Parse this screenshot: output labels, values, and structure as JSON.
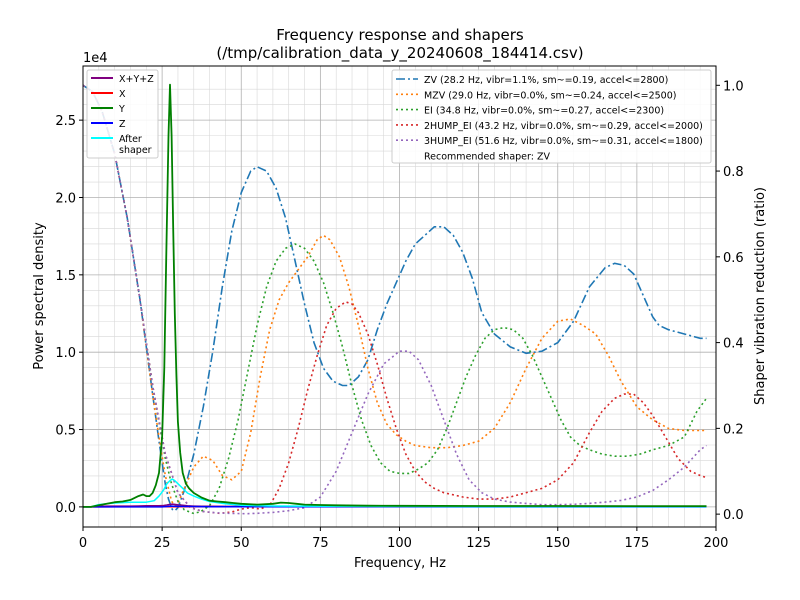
{
  "chart_data": {
    "type": "line",
    "title": [
      "Frequency response and shapers",
      "(/tmp/calibration_data_y_20240608_184414.csv)"
    ],
    "xlabel": "Frequency, Hz",
    "ylabel": "Power spectral density",
    "y2label": "Shaper vibration reduction (ratio)",
    "xlim": [
      0,
      200
    ],
    "ylim": [
      -0.13,
      2.85
    ],
    "y2lim": [
      -0.03,
      1.045
    ],
    "y_multiplier_label": "1e4",
    "x_ticks": [
      0,
      25,
      50,
      75,
      100,
      125,
      150,
      175,
      200
    ],
    "y_ticks": [
      0.0,
      0.5,
      1.0,
      1.5,
      2.0,
      2.5
    ],
    "y_tick_labels": [
      "0.0",
      "0.5",
      "1.0",
      "1.5",
      "2.0",
      "2.5"
    ],
    "y2_ticks": [
      0.0,
      0.2,
      0.4,
      0.6,
      0.8,
      1.0
    ],
    "y2_tick_labels": [
      "0.0",
      "0.2",
      "0.4",
      "0.6",
      "0.8",
      "1.0"
    ],
    "grid": true,
    "legend_left": [
      {
        "label": "X+Y+Z",
        "color": "#800080"
      },
      {
        "label": "X",
        "color": "#ff0000"
      },
      {
        "label": "Y",
        "color": "#008000"
      },
      {
        "label": "Z",
        "color": "#0000ff"
      },
      {
        "label": "After\nshaper",
        "color": "#00ffff"
      }
    ],
    "legend_right": [
      {
        "label": "ZV (28.2 Hz, vibr=1.1%, sm~=0.19, accel<=2800)",
        "color": "#1f77b4",
        "dash": "dashdot"
      },
      {
        "label": "MZV (29.0 Hz, vibr=0.0%, sm~=0.24, accel<=2500)",
        "color": "#ff7f0e",
        "dash": "dotted"
      },
      {
        "label": "EI (34.8 Hz, vibr=0.0%, sm~=0.27, accel<=2300)",
        "color": "#2ca02c",
        "dash": "dotted"
      },
      {
        "label": "2HUMP_EI (43.2 Hz, vibr=0.0%, sm~=0.29, accel<=2000)",
        "color": "#d62728",
        "dash": "dotted"
      },
      {
        "label": "3HUMP_EI (51.6 Hz, vibr=0.0%, sm~=0.31, accel<=1800)",
        "color": "#9467bd",
        "dash": "dotted"
      },
      {
        "label": "Recommended shaper: ZV",
        "color": "",
        "dash": "none"
      }
    ],
    "psd_series": [
      {
        "name": "X+Y+Z",
        "color": "#800080",
        "width": 1.5,
        "x": [
          0,
          2.5,
          5,
          7.5,
          10,
          12.5,
          15,
          17.5,
          20,
          22.5,
          24,
          25.5,
          26.5,
          27.5,
          28.2,
          29,
          30,
          31.5,
          33,
          35,
          37.5,
          40,
          45,
          50,
          55,
          60,
          65,
          70,
          80,
          90,
          100,
          125,
          150,
          175,
          197
        ],
        "y": [
          0,
          0.0,
          0.003,
          0.005,
          0.005,
          0.005,
          0.005,
          0.006,
          0.007,
          0.008,
          0.008,
          0.009,
          0.012,
          0.016,
          0.018,
          0.016,
          0.013,
          0.01,
          0.007,
          0.005,
          0.004,
          0.004,
          0.003,
          0.003,
          0.003,
          0.002,
          0.002,
          0.002,
          0.002,
          0.001,
          0.001,
          0.001,
          0.001,
          0.001,
          0.001
        ]
      },
      {
        "name": "X",
        "color": "#ff0000",
        "width": 1.5,
        "x": [
          0,
          2.5,
          5,
          10,
          15,
          20,
          25,
          28,
          30,
          40,
          50,
          60,
          70,
          80,
          100,
          125,
          150,
          175,
          197
        ],
        "y": [
          0,
          0.0,
          0.0,
          0.001,
          0.001,
          0.001,
          0.001,
          0.002,
          0.001,
          0.001,
          0.001,
          0.001,
          0.001,
          0.001,
          0.001,
          0.001,
          0.001,
          0.001,
          0.001
        ]
      },
      {
        "name": "Z",
        "color": "#0000ff",
        "width": 1.5,
        "x": [
          0,
          2.5,
          5,
          10,
          15,
          20,
          25,
          28,
          30,
          40,
          50,
          60,
          70,
          80,
          100,
          125,
          150,
          175,
          197
        ],
        "y": [
          0,
          0.0,
          0.0,
          0.0,
          0.0,
          0.0,
          0.0,
          0.005,
          0.003,
          0.001,
          0.001,
          0.001,
          0.001,
          0.001,
          0.001,
          0.0,
          0.0,
          0.0,
          0.0
        ]
      },
      {
        "name": "After shaper",
        "color": "#00ffff",
        "width": 1.5,
        "x": [
          0,
          2.5,
          5,
          7.5,
          10,
          12.5,
          15,
          17.5,
          20,
          22.5,
          24,
          25.5,
          26.5,
          27.5,
          28.2,
          29,
          30,
          31.5,
          33,
          35,
          37.5,
          40,
          45,
          50,
          60,
          70,
          80,
          100,
          125,
          150,
          175,
          197
        ],
        "y": [
          0,
          0.0,
          0.015,
          0.02,
          0.025,
          0.028,
          0.03,
          0.03,
          0.03,
          0.04,
          0.07,
          0.11,
          0.15,
          0.17,
          0.18,
          0.17,
          0.15,
          0.12,
          0.09,
          0.07,
          0.05,
          0.035,
          0.02,
          0.01,
          0.006,
          0.005,
          0.004,
          0.003,
          0.002,
          0.002,
          0.002,
          0.002
        ]
      },
      {
        "name": "Y",
        "color": "#008000",
        "width": 1.8,
        "x": [
          0,
          2.5,
          5,
          7.5,
          10,
          12.5,
          15,
          17.5,
          19,
          20,
          21,
          22,
          23,
          24,
          25,
          25.7,
          26.3,
          27,
          27.5,
          28,
          28.5,
          29,
          29.5,
          30,
          30.7,
          31.5,
          32.5,
          33.5,
          35,
          37.5,
          40,
          42.5,
          45,
          47.5,
          50,
          55,
          60,
          62.5,
          65,
          67.5,
          70,
          75,
          80,
          90,
          100,
          125,
          150,
          175,
          197
        ],
        "y": [
          0,
          0.0,
          0.01,
          0.02,
          0.03,
          0.035,
          0.045,
          0.07,
          0.08,
          0.07,
          0.07,
          0.09,
          0.14,
          0.22,
          0.45,
          0.9,
          1.6,
          2.4,
          2.73,
          2.4,
          1.8,
          1.25,
          0.85,
          0.55,
          0.35,
          0.22,
          0.15,
          0.12,
          0.09,
          0.06,
          0.04,
          0.035,
          0.03,
          0.025,
          0.02,
          0.015,
          0.02,
          0.028,
          0.025,
          0.02,
          0.015,
          0.012,
          0.01,
          0.008,
          0.007,
          0.006,
          0.006,
          0.005,
          0.005
        ]
      }
    ],
    "shaper_series": [
      {
        "name": "ZV",
        "color": "#1f77b4",
        "dash": "9,3,2,3",
        "width": 1.6,
        "x": [
          0,
          3,
          6,
          10,
          14,
          18,
          20,
          22,
          24,
          26,
          27,
          28.2,
          29,
          30,
          32,
          35,
          38,
          41,
          44,
          47,
          50,
          53,
          55,
          58,
          61,
          64,
          67,
          70,
          73,
          76,
          79,
          82,
          84,
          87,
          90,
          93,
          96,
          99,
          102,
          105,
          108,
          111,
          114,
          117,
          120,
          123,
          126,
          130,
          135,
          140,
          145,
          150,
          155,
          160,
          165,
          168,
          171,
          174,
          177,
          180,
          182,
          185,
          190,
          195,
          197
        ],
        "y": [
          1.0,
          0.985,
          0.94,
          0.84,
          0.69,
          0.5,
          0.39,
          0.28,
          0.17,
          0.07,
          0.035,
          0.011,
          0.008,
          0.015,
          0.055,
          0.14,
          0.25,
          0.38,
          0.53,
          0.66,
          0.75,
          0.8,
          0.81,
          0.8,
          0.76,
          0.69,
          0.59,
          0.49,
          0.4,
          0.34,
          0.31,
          0.3,
          0.3,
          0.32,
          0.36,
          0.43,
          0.49,
          0.54,
          0.59,
          0.63,
          0.65,
          0.67,
          0.67,
          0.65,
          0.61,
          0.55,
          0.47,
          0.42,
          0.39,
          0.375,
          0.38,
          0.4,
          0.45,
          0.53,
          0.575,
          0.585,
          0.58,
          0.56,
          0.51,
          0.46,
          0.44,
          0.43,
          0.42,
          0.41,
          0.41
        ]
      },
      {
        "name": "MZV",
        "color": "#ff7f0e",
        "dash": "2,3",
        "width": 1.6,
        "x": [
          0,
          3,
          6,
          10,
          14,
          18,
          20,
          22,
          24,
          26,
          28,
          29,
          30,
          32,
          35,
          38,
          41,
          44,
          47,
          50,
          53,
          56,
          59,
          62,
          65,
          68,
          71,
          74,
          76,
          78,
          81,
          84,
          87,
          90,
          93,
          96,
          99,
          102,
          105,
          110,
          115,
          120,
          125,
          130,
          135,
          140,
          145,
          150,
          154,
          158,
          162,
          166,
          170,
          175,
          180,
          185,
          190,
          195,
          197
        ],
        "y": [
          1.0,
          0.985,
          0.94,
          0.84,
          0.69,
          0.5,
          0.39,
          0.28,
          0.18,
          0.09,
          0.03,
          0.02,
          0.025,
          0.06,
          0.11,
          0.135,
          0.125,
          0.09,
          0.08,
          0.1,
          0.19,
          0.32,
          0.43,
          0.5,
          0.54,
          0.57,
          0.6,
          0.64,
          0.65,
          0.64,
          0.6,
          0.53,
          0.44,
          0.34,
          0.26,
          0.21,
          0.185,
          0.17,
          0.16,
          0.155,
          0.155,
          0.16,
          0.17,
          0.2,
          0.26,
          0.34,
          0.41,
          0.45,
          0.455,
          0.44,
          0.42,
          0.37,
          0.31,
          0.25,
          0.22,
          0.2,
          0.195,
          0.195,
          0.195
        ]
      },
      {
        "name": "EI",
        "color": "#2ca02c",
        "dash": "2,3",
        "width": 1.6,
        "x": [
          0,
          3,
          6,
          10,
          14,
          18,
          22,
          26,
          28,
          30,
          32,
          34.8,
          37,
          40,
          43,
          46,
          49,
          52,
          55,
          58,
          61,
          64,
          67,
          70,
          73,
          76,
          79,
          82,
          85,
          88,
          91,
          94,
          97,
          100,
          103,
          106,
          109,
          112,
          115,
          118,
          121,
          124,
          127,
          130,
          133,
          136,
          139,
          142,
          145,
          148,
          151,
          154,
          157,
          160,
          164,
          168,
          172,
          176,
          180,
          185,
          190,
          194,
          197
        ],
        "y": [
          1.0,
          0.985,
          0.94,
          0.84,
          0.69,
          0.5,
          0.3,
          0.13,
          0.07,
          0.03,
          0.01,
          0.002,
          0.005,
          0.02,
          0.06,
          0.13,
          0.22,
          0.33,
          0.44,
          0.53,
          0.59,
          0.62,
          0.63,
          0.62,
          0.59,
          0.54,
          0.47,
          0.39,
          0.3,
          0.22,
          0.16,
          0.12,
          0.1,
          0.095,
          0.095,
          0.105,
          0.12,
          0.15,
          0.2,
          0.26,
          0.32,
          0.37,
          0.41,
          0.43,
          0.435,
          0.43,
          0.41,
          0.37,
          0.32,
          0.27,
          0.22,
          0.18,
          0.16,
          0.15,
          0.14,
          0.135,
          0.135,
          0.14,
          0.15,
          0.16,
          0.18,
          0.24,
          0.27
        ]
      },
      {
        "name": "2HUMP_EI",
        "color": "#d62728",
        "dash": "2,3",
        "width": 1.6,
        "x": [
          0,
          3,
          6,
          10,
          14,
          18,
          22,
          26,
          30,
          34,
          38,
          43.2,
          47,
          50,
          53,
          56,
          59,
          62,
          65,
          68,
          71,
          74,
          77,
          80,
          83,
          85,
          87,
          90,
          93,
          96,
          99,
          102,
          105,
          108,
          111,
          114,
          117,
          120,
          125,
          130,
          135,
          140,
          145,
          150,
          155,
          160,
          164,
          168,
          171,
          174,
          177,
          180,
          184,
          188,
          192,
          195,
          197
        ],
        "y": [
          1.0,
          0.985,
          0.94,
          0.84,
          0.69,
          0.5,
          0.3,
          0.14,
          0.05,
          0.015,
          0.006,
          0.002,
          0.005,
          0.012,
          0.015,
          0.012,
          0.02,
          0.06,
          0.12,
          0.2,
          0.29,
          0.37,
          0.44,
          0.48,
          0.495,
          0.49,
          0.47,
          0.42,
          0.35,
          0.27,
          0.2,
          0.14,
          0.1,
          0.075,
          0.06,
          0.05,
          0.045,
          0.04,
          0.035,
          0.035,
          0.04,
          0.05,
          0.06,
          0.08,
          0.12,
          0.19,
          0.24,
          0.27,
          0.28,
          0.28,
          0.26,
          0.23,
          0.18,
          0.13,
          0.1,
          0.09,
          0.085
        ]
      },
      {
        "name": "3HUMP_EI",
        "color": "#9467bd",
        "dash": "2,3",
        "width": 1.6,
        "x": [
          0,
          3,
          6,
          10,
          14,
          18,
          22,
          26,
          30,
          34,
          38,
          42,
          46,
          51.6,
          55,
          60,
          65,
          70,
          75,
          80,
          85,
          90,
          95,
          100,
          103,
          106,
          110,
          114,
          118,
          122,
          126,
          130,
          135,
          140,
          145,
          150,
          155,
          160,
          165,
          170,
          175,
          180,
          185,
          190,
          195,
          197
        ],
        "y": [
          1.0,
          0.985,
          0.94,
          0.84,
          0.69,
          0.5,
          0.3,
          0.14,
          0.05,
          0.015,
          0.006,
          0.003,
          0.002,
          0.001,
          0.002,
          0.004,
          0.008,
          0.015,
          0.04,
          0.1,
          0.19,
          0.28,
          0.35,
          0.38,
          0.38,
          0.36,
          0.3,
          0.22,
          0.14,
          0.08,
          0.05,
          0.035,
          0.028,
          0.025,
          0.022,
          0.022,
          0.023,
          0.025,
          0.028,
          0.032,
          0.04,
          0.055,
          0.08,
          0.11,
          0.15,
          0.16
        ]
      }
    ]
  }
}
